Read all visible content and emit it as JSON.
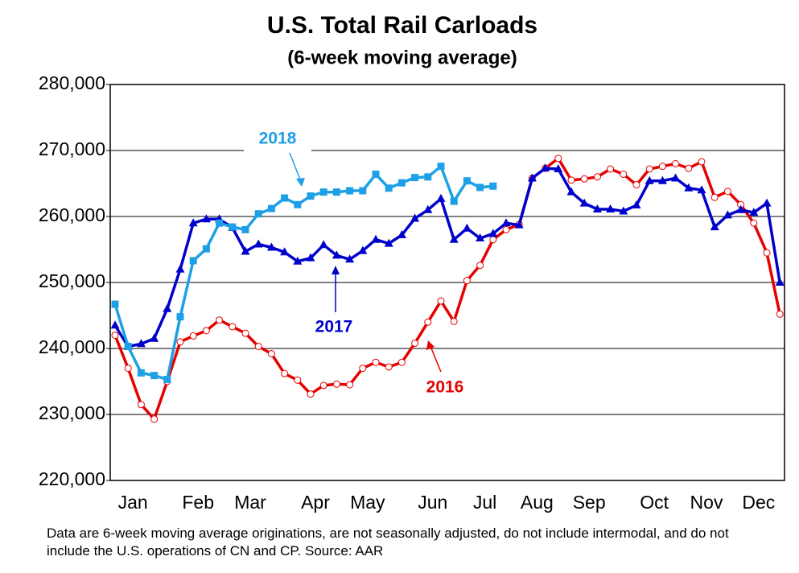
{
  "chart_data": {
    "type": "line",
    "title": "U.S. Total Rail Carloads",
    "subtitle": "(6-week moving average)",
    "note": "Data are 6-week moving average originations, are not seasonally adjusted, do not include intermodal, and do not include the U.S. operations of CN and CP.   Source: AAR",
    "categories": [
      null,
      "Jan",
      null,
      null,
      null,
      null,
      "Feb",
      null,
      null,
      null,
      "Mar",
      null,
      null,
      null,
      null,
      "Apr",
      null,
      null,
      null,
      "May",
      null,
      null,
      null,
      null,
      "Jun",
      null,
      null,
      null,
      "Jul",
      null,
      null,
      null,
      "Aug",
      null,
      null,
      null,
      "Sep",
      null,
      null,
      null,
      null,
      "Oct",
      null,
      null,
      null,
      "Nov",
      null,
      null,
      null,
      "Dec",
      null,
      null
    ],
    "ylim": [
      220000,
      280000
    ],
    "yticks": [
      {
        "value": 220000,
        "label": "220,000"
      },
      {
        "value": 230000,
        "label": "230,000"
      },
      {
        "value": 240000,
        "label": "240,000"
      },
      {
        "value": 250000,
        "label": "250,000"
      },
      {
        "value": 260000,
        "label": "260,000"
      },
      {
        "value": 270000,
        "label": "270,000"
      },
      {
        "value": 280000,
        "label": "280,000"
      }
    ],
    "grid": true,
    "series": [
      {
        "name": "2016",
        "color": "#e60000",
        "marker": "circle",
        "values": [
          242000,
          237000,
          231500,
          229300,
          235000,
          241000,
          241900,
          242700,
          244300,
          243300,
          242300,
          240300,
          239200,
          236200,
          235200,
          233100,
          234400,
          234600,
          234500,
          237000,
          237900,
          237200,
          237900,
          240800,
          244000,
          247200,
          244100,
          250300,
          252600,
          256500,
          258000,
          258800,
          265800,
          267300,
          268800,
          265500,
          265700,
          266000,
          267200,
          266400,
          264800,
          267200,
          267600,
          268000,
          267300,
          268300,
          262900,
          263800,
          261800,
          259000,
          254500,
          245200
        ]
      },
      {
        "name": "2017",
        "color": "#0000cc",
        "marker": "triangle",
        "values": [
          243500,
          240300,
          240700,
          241500,
          246000,
          252000,
          259000,
          259600,
          259600,
          258300,
          254700,
          255800,
          255300,
          254600,
          253200,
          253700,
          255700,
          254100,
          253500,
          254800,
          256500,
          255900,
          257200,
          259700,
          261000,
          262700,
          256500,
          258200,
          256700,
          257400,
          259000,
          258700,
          265800,
          267300,
          267200,
          263700,
          262000,
          261100,
          261100,
          260800,
          261700,
          265400,
          265400,
          265800,
          264300,
          264000,
          258400,
          260200,
          261000,
          260600,
          262000,
          250000
        ]
      },
      {
        "name": "2018",
        "color": "#1ea0e6",
        "marker": "square",
        "values": [
          246700,
          240300,
          236300,
          235900,
          235300,
          244800,
          253300,
          255100,
          259000,
          258400,
          258000,
          260400,
          261200,
          262800,
          261800,
          263100,
          263700,
          263700,
          263900,
          263900,
          266400,
          264300,
          265100,
          265900,
          266000,
          267600,
          262300,
          265400,
          264400,
          264600,
          null,
          null,
          null,
          null,
          null,
          null,
          null,
          null,
          null,
          null,
          null,
          null,
          null,
          null,
          null,
          null,
          null,
          null,
          null,
          null,
          null,
          null
        ]
      }
    ]
  }
}
